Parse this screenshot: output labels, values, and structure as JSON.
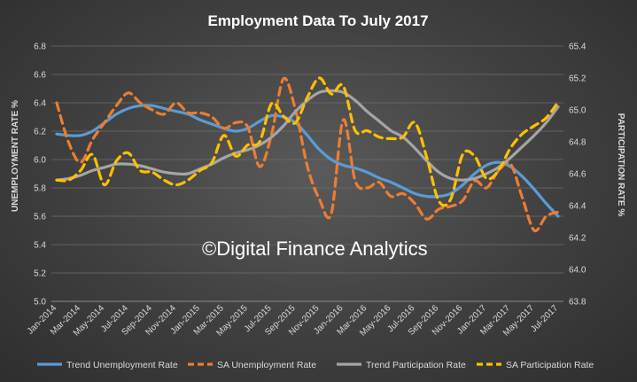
{
  "chart_data": {
    "type": "line",
    "title": "Employment Data To July 2017",
    "watermark": "©Digital Finance Analytics",
    "y_left_label": "UNEMPLOYMENT RATE %",
    "y_right_label": "PARTICIPATION RATE %",
    "y_left_lim": [
      5.0,
      6.8
    ],
    "y_left_ticks": [
      "5.0",
      "5.2",
      "5.4",
      "5.6",
      "5.8",
      "6.0",
      "6.2",
      "6.4",
      "6.6",
      "6.8"
    ],
    "y_right_lim": [
      63.8,
      65.4
    ],
    "y_right_ticks": [
      "63.8",
      "64.0",
      "64.2",
      "64.4",
      "64.6",
      "64.8",
      "65.0",
      "65.2",
      "65.4"
    ],
    "grid": true,
    "legend_position": "bottom",
    "x_tick_labels": [
      "Jan-2014",
      "Mar-2014",
      "May-2014",
      "Jul-2014",
      "Sep-2014",
      "Nov-2014",
      "Jan-2015",
      "Mar-2015",
      "May-2015",
      "Jul-2015",
      "Sep-2015",
      "Nov-2015",
      "Jan-2016",
      "Mar-2016",
      "May-2016",
      "Jul-2016",
      "Sep-2016",
      "Nov-2016",
      "Jan-2017",
      "Mar-2017",
      "May-2017",
      "Jul-2017"
    ],
    "x": [
      "Jan-2014",
      "Feb-2014",
      "Mar-2014",
      "Apr-2014",
      "May-2014",
      "Jun-2014",
      "Jul-2014",
      "Aug-2014",
      "Sep-2014",
      "Oct-2014",
      "Nov-2014",
      "Dec-2014",
      "Jan-2015",
      "Feb-2015",
      "Mar-2015",
      "Apr-2015",
      "May-2015",
      "Jun-2015",
      "Jul-2015",
      "Aug-2015",
      "Sep-2015",
      "Oct-2015",
      "Nov-2015",
      "Dec-2015",
      "Jan-2016",
      "Feb-2016",
      "Mar-2016",
      "Apr-2016",
      "May-2016",
      "Jun-2016",
      "Jul-2016",
      "Aug-2016",
      "Sep-2016",
      "Oct-2016",
      "Nov-2016",
      "Dec-2016",
      "Jan-2017",
      "Feb-2017",
      "Mar-2017",
      "Apr-2017",
      "May-2017",
      "Jun-2017",
      "Jul-2017"
    ],
    "series": [
      {
        "name": "Trend Unemployment Rate",
        "axis": "left",
        "color": "#5b9bd5",
        "dash": false,
        "values": [
          6.18,
          6.17,
          6.17,
          6.2,
          6.26,
          6.32,
          6.36,
          6.38,
          6.38,
          6.36,
          6.34,
          6.32,
          6.28,
          6.25,
          6.22,
          6.2,
          6.22,
          6.27,
          6.31,
          6.3,
          6.26,
          6.17,
          6.07,
          6.0,
          5.96,
          5.94,
          5.91,
          5.87,
          5.84,
          5.8,
          5.76,
          5.74,
          5.74,
          5.76,
          5.82,
          5.9,
          5.96,
          5.98,
          5.95,
          5.88,
          5.79,
          5.69,
          5.6
        ]
      },
      {
        "name": "SA Unemployment Rate",
        "axis": "left",
        "color": "#ed7d31",
        "dash": true,
        "values": [
          6.4,
          6.12,
          5.98,
          6.14,
          6.26,
          6.38,
          6.47,
          6.4,
          6.35,
          6.32,
          6.4,
          6.33,
          6.33,
          6.3,
          6.22,
          6.26,
          6.23,
          5.95,
          6.18,
          6.57,
          6.35,
          5.95,
          5.72,
          5.62,
          6.28,
          5.85,
          5.8,
          5.84,
          5.74,
          5.76,
          5.69,
          5.58,
          5.65,
          5.67,
          5.71,
          5.85,
          5.8,
          5.92,
          5.97,
          5.73,
          5.5,
          5.6,
          5.63
        ]
      },
      {
        "name": "Trend Participation Rate",
        "axis": "right",
        "color": "#a5a5a5",
        "dash": false,
        "values": [
          64.56,
          64.57,
          64.59,
          64.62,
          64.64,
          64.66,
          64.66,
          64.65,
          64.63,
          64.61,
          64.6,
          64.6,
          64.63,
          64.66,
          64.7,
          64.73,
          64.75,
          64.78,
          64.83,
          64.9,
          64.99,
          65.06,
          65.11,
          65.12,
          65.11,
          65.06,
          64.99,
          64.93,
          64.87,
          64.83,
          64.76,
          64.68,
          64.61,
          64.57,
          64.56,
          64.57,
          64.6,
          64.64,
          64.7,
          64.77,
          64.84,
          64.92,
          65.02
        ]
      },
      {
        "name": "SA Participation Rate",
        "axis": "right",
        "color": "#ffc000",
        "dash": true,
        "values": [
          64.56,
          64.56,
          64.62,
          64.72,
          64.53,
          64.68,
          64.73,
          64.62,
          64.61,
          64.56,
          64.53,
          64.56,
          64.62,
          64.67,
          64.84,
          64.71,
          64.78,
          64.8,
          65.04,
          64.96,
          64.92,
          65.08,
          65.2,
          65.1,
          65.15,
          64.87,
          64.87,
          64.83,
          64.82,
          64.83,
          64.92,
          64.7,
          64.43,
          64.44,
          64.72,
          64.71,
          64.57,
          64.62,
          64.76,
          64.85,
          64.9,
          64.95,
          65.05
        ]
      }
    ]
  }
}
